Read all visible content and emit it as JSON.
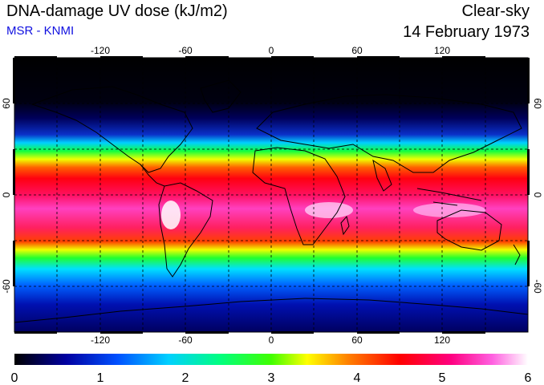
{
  "header": {
    "title": "DNA-damage UV dose (kJ/m2)",
    "subtitle": "MSR - KNMI",
    "condition": "Clear-sky",
    "date": "14 February 1973"
  },
  "map": {
    "lon_ticks": [
      "-120",
      "-60",
      "0",
      "60",
      "120"
    ],
    "lat_ticks": [
      "60",
      "0",
      "-60"
    ],
    "lon_range": [
      -180,
      180
    ],
    "lat_range": [
      -90,
      90
    ],
    "grid_lines": true
  },
  "colorbar": {
    "ticks": [
      "0",
      "1",
      "2",
      "3",
      "4",
      "5",
      "6"
    ],
    "range": [
      0,
      6
    ],
    "colors": [
      "#000000",
      "#0000c8",
      "#0080ff",
      "#00ffff",
      "#00ff00",
      "#ffff00",
      "#ff8000",
      "#ff0000",
      "#ff00a0",
      "#ffffff"
    ]
  }
}
